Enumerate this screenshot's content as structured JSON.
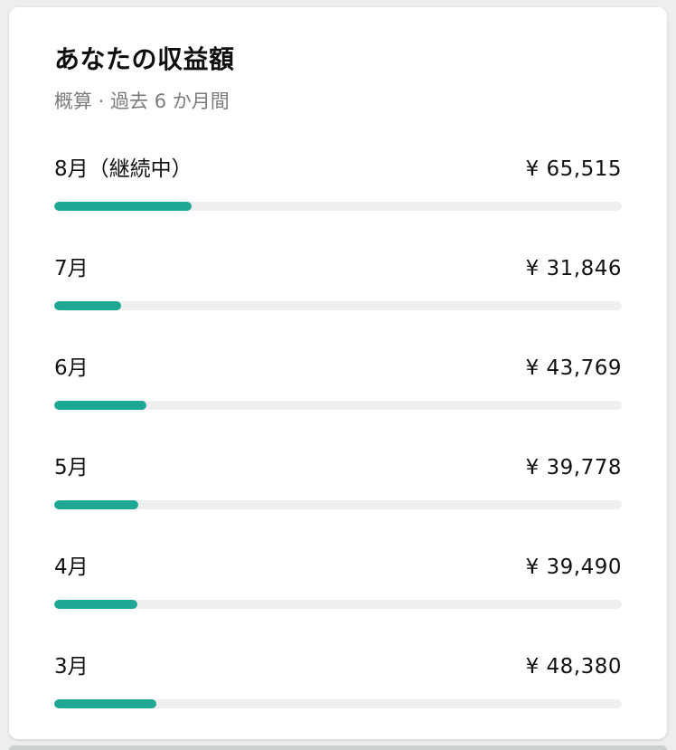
{
  "card": {
    "title": "あなたの収益額",
    "subtitle": "概算 · 過去 6 か月間"
  },
  "accent_color": "#1ea794",
  "track_color": "#efefef",
  "chart_data": {
    "type": "bar",
    "orientation": "horizontal",
    "title": "あなたの収益額",
    "subtitle": "概算 · 過去 6 か月間",
    "categories": [
      "8月（継続中）",
      "7月",
      "6月",
      "5月",
      "4月",
      "3月"
    ],
    "values": [
      65515,
      31846,
      43769,
      39778,
      39490,
      48380
    ],
    "value_labels": [
      "¥ 65,515",
      "¥ 31,846",
      "¥ 43,769",
      "¥ 39,778",
      "¥ 39,490",
      "¥ 48,380"
    ],
    "currency": "JPY",
    "xlim": [
      0,
      270000
    ],
    "legend": "off",
    "grid": "off"
  }
}
